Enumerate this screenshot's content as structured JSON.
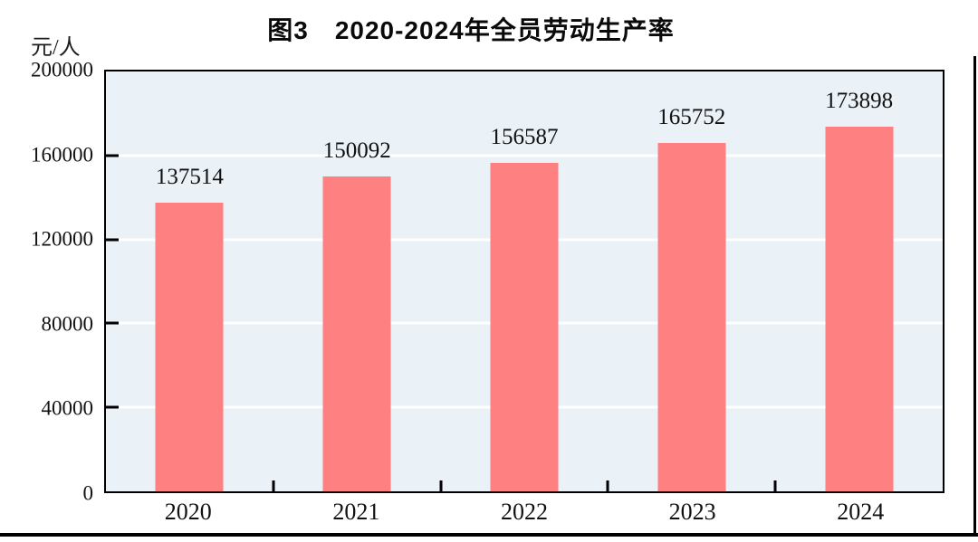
{
  "page": {
    "background": "#ffffff",
    "document_border_color": "#000000"
  },
  "title": "图3　2020-2024年全员劳动生产率",
  "unit_label": "元/人",
  "chart_data": {
    "type": "bar",
    "title": "图3　2020-2024年全员劳动生产率",
    "xlabel": "",
    "ylabel": "元/人",
    "categories": [
      "2020",
      "2021",
      "2022",
      "2023",
      "2024"
    ],
    "values": [
      137514,
      150092,
      156587,
      165752,
      173898
    ],
    "data_labels": [
      "137514",
      "150092",
      "156587",
      "165752",
      "173898"
    ],
    "ylim": [
      0,
      200000
    ],
    "yticks": [
      0,
      40000,
      80000,
      120000,
      160000,
      200000
    ],
    "grid": "horizontal",
    "gridline_color": "#FFFFFF",
    "bar_color": "#FF8080",
    "plot_background": "#EAF1F7",
    "axis_frame_color": "#000000",
    "legend": "none"
  }
}
